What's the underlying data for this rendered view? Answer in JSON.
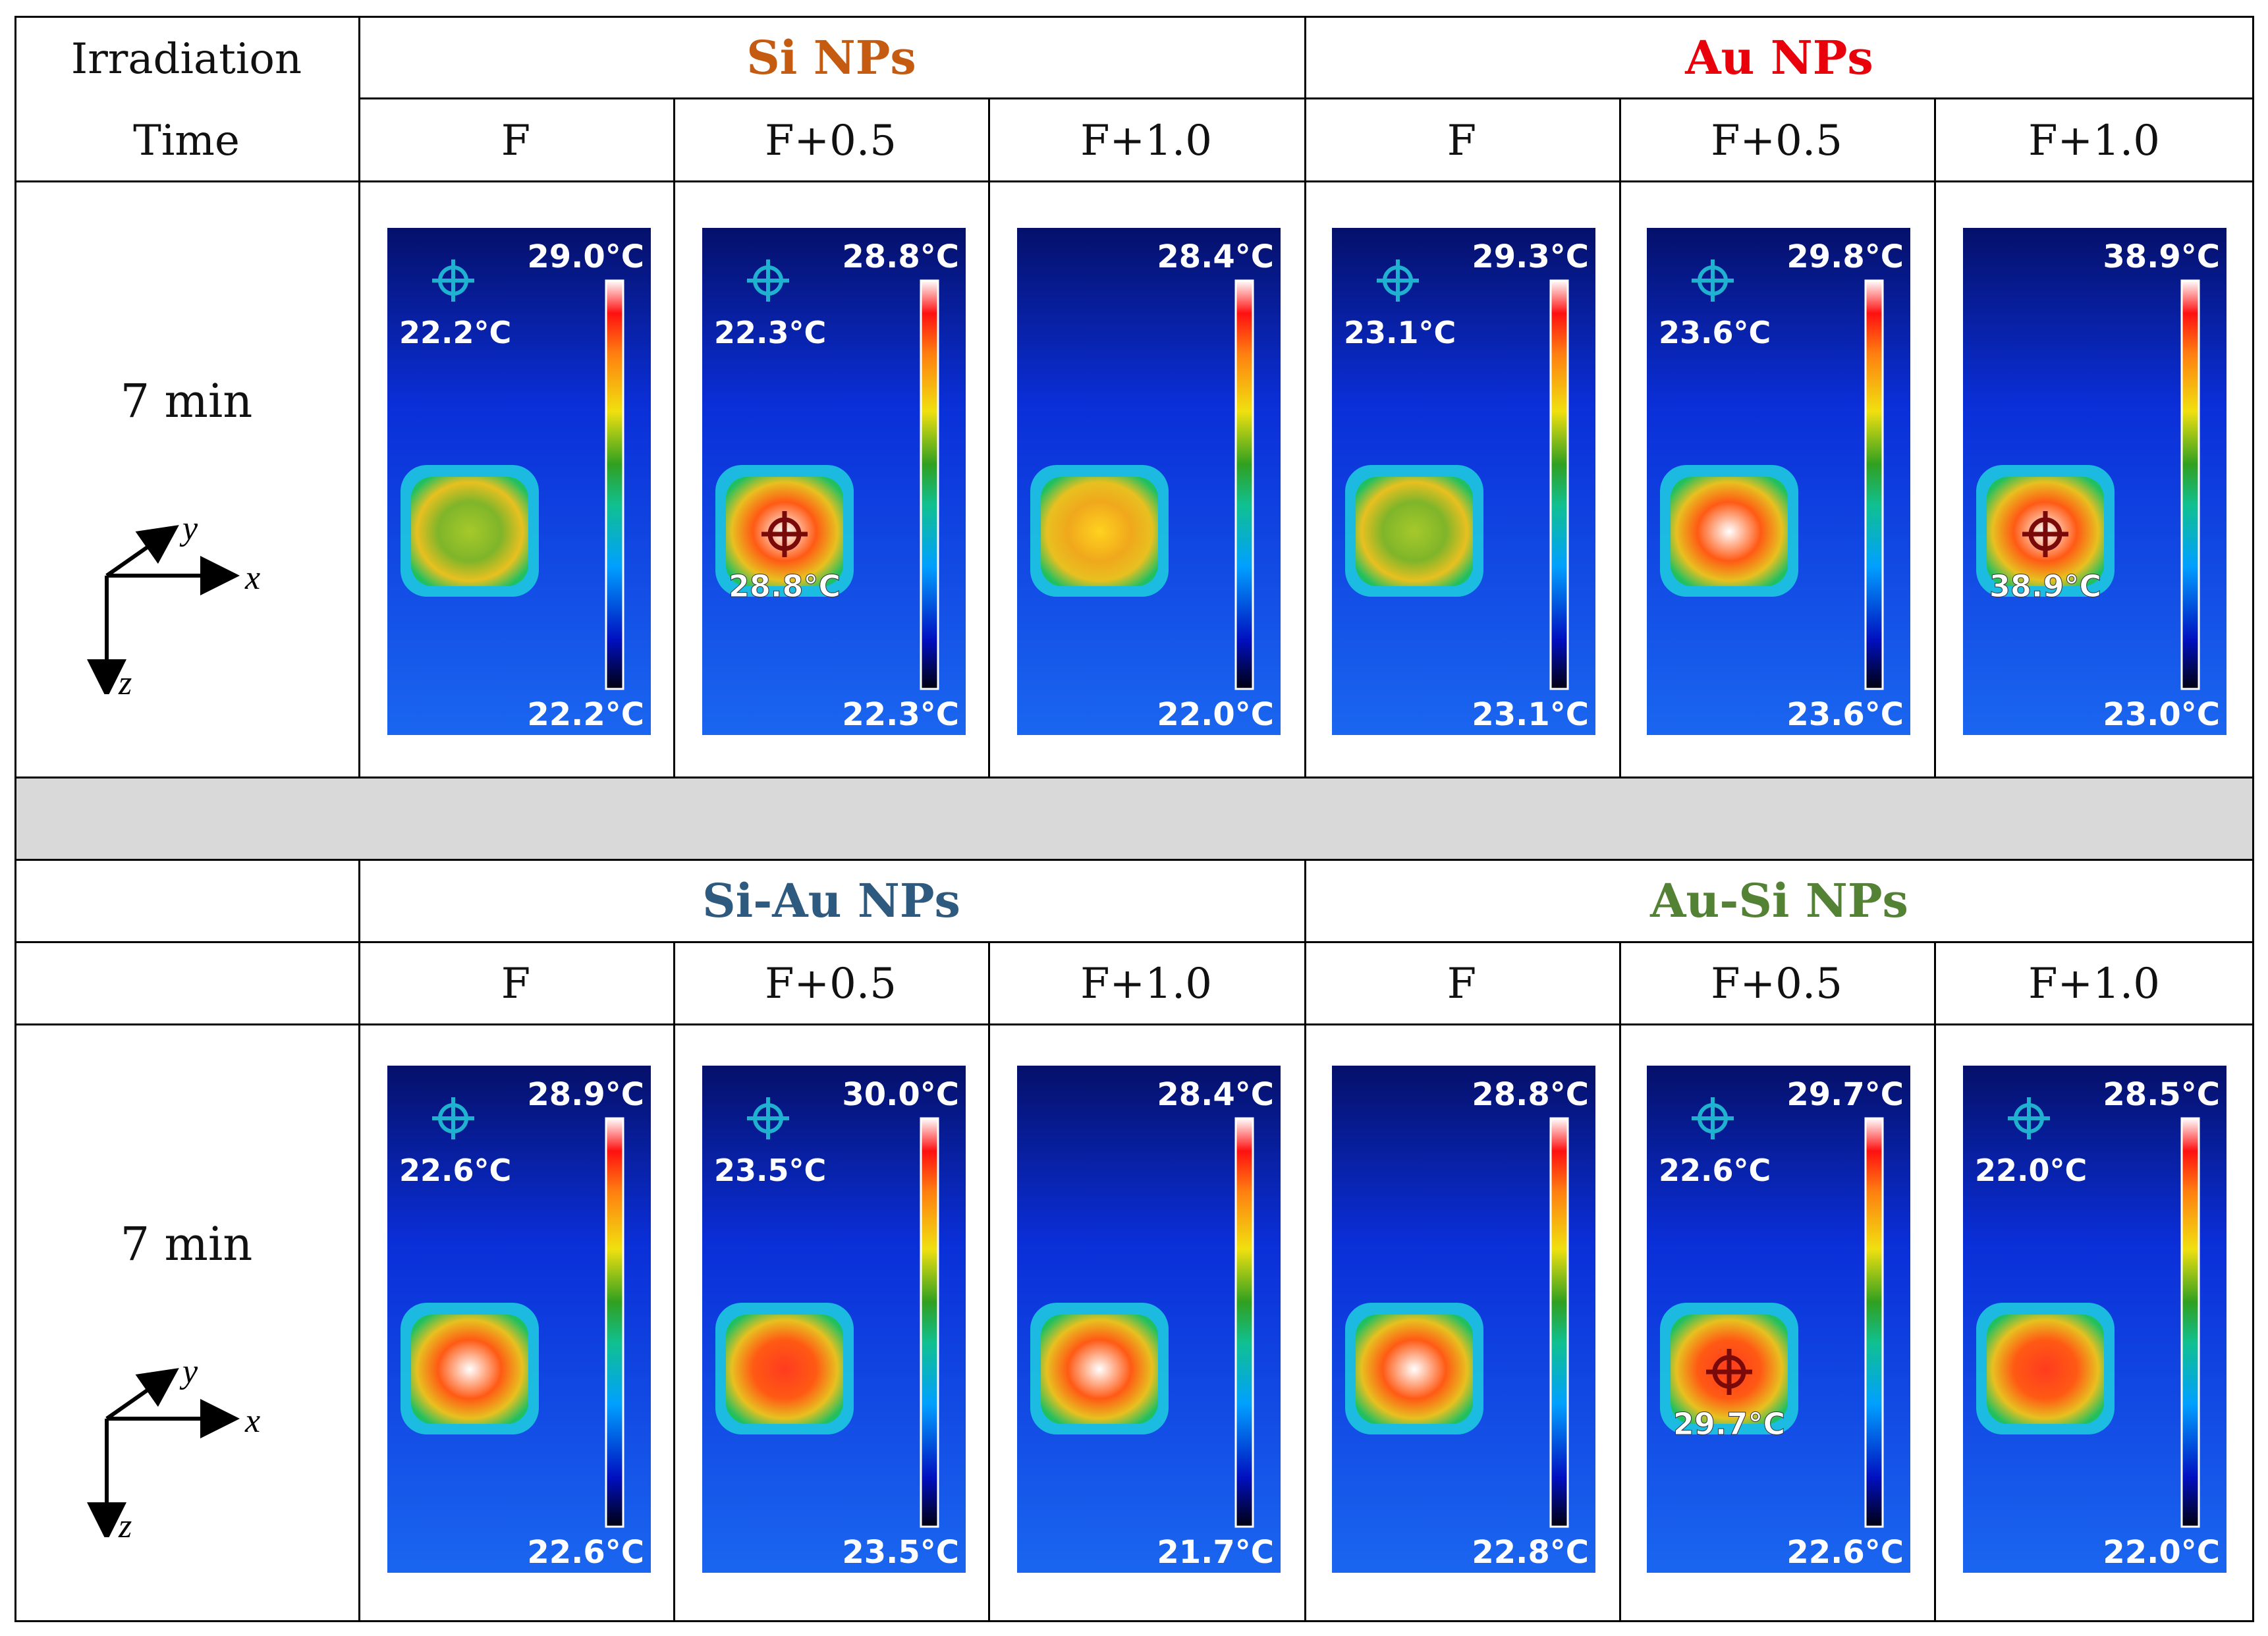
{
  "table": {
    "header_time_line1": "Irradiation",
    "header_time_line2": "Time",
    "groups": [
      {
        "label": "Si NPs",
        "color": "#c55a11"
      },
      {
        "label": "Au NPs",
        "color": "#e8000b"
      },
      {
        "label": "Si-Au NPs",
        "color": "#2e5a80"
      },
      {
        "label": "Au-Si NPs",
        "color": "#548235"
      }
    ],
    "conditions": [
      "F",
      "F+0.5",
      "F+1.0",
      "F",
      "F+0.5",
      "F+1.0"
    ],
    "time_label": "7 min",
    "axis_labels": {
      "x": "x",
      "y": "y",
      "z": "z"
    }
  },
  "thermal_images": {
    "row1": [
      {
        "max": "29.0°C",
        "min": "22.2°C",
        "spot_bg": "22.2°C",
        "spot_hot": "",
        "hot_level": 0.45
      },
      {
        "max": "28.8°C",
        "min": "22.3°C",
        "spot_bg": "22.3°C",
        "spot_hot": "28.8°C",
        "hot_level": 0.95
      },
      {
        "max": "28.4°C",
        "min": "22.0°C",
        "spot_bg": "",
        "spot_hot": "",
        "hot_level": 0.65
      },
      {
        "max": "29.3°C",
        "min": "23.1°C",
        "spot_bg": "23.1°C",
        "spot_hot": "",
        "hot_level": 0.55
      },
      {
        "max": "29.8°C",
        "min": "23.6°C",
        "spot_bg": "23.6°C",
        "spot_hot": "",
        "hot_level": 1.0
      },
      {
        "max": "38.9°C",
        "min": "23.0°C",
        "spot_bg": "",
        "spot_hot": "38.9°C",
        "hot_level": 0.95
      }
    ],
    "row2": [
      {
        "max": "28.9°C",
        "min": "22.6°C",
        "spot_bg": "22.6°C",
        "spot_hot": "",
        "hot_level": 1.0
      },
      {
        "max": "30.0°C",
        "min": "23.5°C",
        "spot_bg": "23.5°C",
        "spot_hot": "",
        "hot_level": 0.85
      },
      {
        "max": "28.4°C",
        "min": "21.7°C",
        "spot_bg": "",
        "spot_hot": "",
        "hot_level": 1.0
      },
      {
        "max": "28.8°C",
        "min": "22.8°C",
        "spot_bg": "",
        "spot_hot": "",
        "hot_level": 1.0
      },
      {
        "max": "29.7°C",
        "min": "22.6°C",
        "spot_bg": "22.6°C",
        "spot_hot": "29.7°C",
        "hot_level": 0.8
      },
      {
        "max": "28.5°C",
        "min": "22.0°C",
        "spot_bg": "22.0°C",
        "spot_hot": "",
        "hot_level": 0.85
      }
    ]
  },
  "colors": {
    "grid_line": "#000000",
    "separator_fill": "#d9d9d9"
  }
}
